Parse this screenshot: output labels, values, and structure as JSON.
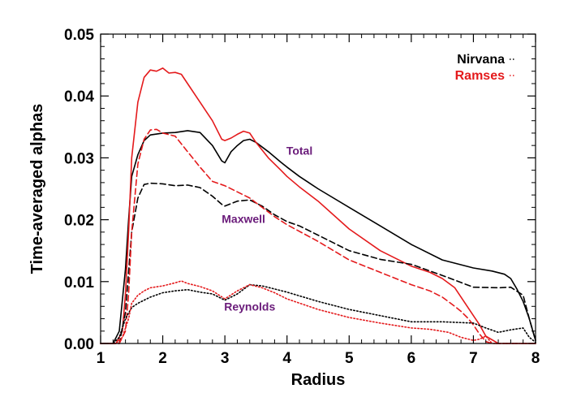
{
  "chart_data": {
    "type": "line",
    "title": "",
    "xlabel": "Radius",
    "ylabel": "Time-averaged alphas",
    "xlim": [
      1,
      8
    ],
    "ylim": [
      0,
      0.05
    ],
    "x_ticks": [
      "1",
      "2",
      "3",
      "4",
      "5",
      "6",
      "7",
      "8"
    ],
    "y_ticks": [
      "0.00",
      "0.01",
      "0.02",
      "0.03",
      "0.04",
      "0.05"
    ],
    "grid": false,
    "legend": {
      "placement": "top-right",
      "entries": [
        {
          "label": "Nirvana",
          "color": "#000000"
        },
        {
          "label": "Ramses",
          "color": "#e41a1c"
        }
      ]
    },
    "annotations": [
      {
        "text": "Total",
        "x": 4.2,
        "y": 0.0305,
        "color": "#6a1b7a"
      },
      {
        "text": "Maxwell",
        "x": 3.3,
        "y": 0.0195,
        "color": "#6a1b7a"
      },
      {
        "text": "Reynolds",
        "x": 3.4,
        "y": 0.0053,
        "color": "#6a1b7a"
      }
    ],
    "series": [
      {
        "name": "Nirvana Total",
        "code": "Nirvana",
        "component": "Total",
        "color": "#000000",
        "dash": "solid",
        "x": [
          1.0,
          1.2,
          1.3,
          1.4,
          1.45,
          1.5,
          1.6,
          1.7,
          1.8,
          2.0,
          2.2,
          2.4,
          2.6,
          2.8,
          2.95,
          3.0,
          3.1,
          3.2,
          3.3,
          3.4,
          3.5,
          3.7,
          3.9,
          4.0,
          4.2,
          4.5,
          5.0,
          5.5,
          6.0,
          6.5,
          7.0,
          7.3,
          7.5,
          7.6,
          7.7,
          7.8,
          7.9,
          8.0
        ],
        "y": [
          0,
          0,
          0.002,
          0.012,
          0.02,
          0.027,
          0.0305,
          0.0328,
          0.0337,
          0.034,
          0.0341,
          0.0344,
          0.0341,
          0.032,
          0.0295,
          0.0292,
          0.031,
          0.032,
          0.0328,
          0.033,
          0.0325,
          0.031,
          0.0293,
          0.0285,
          0.027,
          0.025,
          0.022,
          0.019,
          0.016,
          0.0135,
          0.0122,
          0.0117,
          0.0112,
          0.0105,
          0.0088,
          0.0068,
          0.004,
          0.0005
        ]
      },
      {
        "name": "Ramses Total",
        "code": "Ramses",
        "component": "Total",
        "color": "#e41a1c",
        "dash": "solid",
        "x": [
          1.0,
          1.25,
          1.35,
          1.4,
          1.45,
          1.5,
          1.6,
          1.7,
          1.8,
          1.9,
          2.0,
          2.1,
          2.2,
          2.3,
          2.4,
          2.6,
          2.8,
          2.95,
          3.0,
          3.1,
          3.2,
          3.3,
          3.4,
          3.5,
          3.7,
          3.9,
          4.0,
          4.2,
          4.5,
          5.0,
          5.5,
          6.0,
          6.3,
          6.5,
          6.7,
          6.9,
          7.0,
          7.1,
          7.2,
          7.4,
          8.0
        ],
        "y": [
          0,
          0,
          0.002,
          0.008,
          0.018,
          0.03,
          0.039,
          0.043,
          0.0442,
          0.044,
          0.0445,
          0.0437,
          0.0438,
          0.0435,
          0.042,
          0.039,
          0.036,
          0.033,
          0.0328,
          0.0332,
          0.0338,
          0.0343,
          0.034,
          0.0325,
          0.03,
          0.028,
          0.027,
          0.0253,
          0.023,
          0.0185,
          0.015,
          0.0125,
          0.0115,
          0.0105,
          0.009,
          0.006,
          0.0045,
          0.003,
          0.0012,
          0,
          0
        ]
      },
      {
        "name": "Nirvana Maxwell",
        "code": "Nirvana",
        "component": "Maxwell",
        "color": "#000000",
        "dash": "dashed",
        "x": [
          1.0,
          1.3,
          1.4,
          1.5,
          1.6,
          1.7,
          1.8,
          2.0,
          2.2,
          2.4,
          2.6,
          2.8,
          2.95,
          3.0,
          3.2,
          3.4,
          3.6,
          3.8,
          4.0,
          4.2,
          4.5,
          5.0,
          5.5,
          6.0,
          6.5,
          7.0,
          7.4,
          7.6,
          7.8,
          7.9,
          8.0
        ],
        "y": [
          0,
          0,
          0.005,
          0.018,
          0.0235,
          0.0257,
          0.0259,
          0.0258,
          0.0255,
          0.0256,
          0.0252,
          0.0238,
          0.0225,
          0.0222,
          0.023,
          0.0232,
          0.0222,
          0.0208,
          0.0197,
          0.019,
          0.0175,
          0.015,
          0.0136,
          0.0128,
          0.011,
          0.0091,
          0.009,
          0.0091,
          0.0078,
          0.004,
          0.0005
        ]
      },
      {
        "name": "Ramses Maxwell",
        "code": "Ramses",
        "component": "Maxwell",
        "color": "#e41a1c",
        "dash": "dashed",
        "x": [
          1.0,
          1.3,
          1.4,
          1.45,
          1.5,
          1.6,
          1.7,
          1.8,
          1.9,
          2.0,
          2.2,
          2.4,
          2.6,
          2.8,
          3.0,
          3.2,
          3.4,
          3.6,
          3.8,
          4.0,
          4.5,
          5.0,
          5.5,
          6.0,
          6.3,
          6.5,
          6.7,
          6.8,
          6.9,
          7.0,
          7.1,
          7.2,
          7.3,
          8.0
        ],
        "y": [
          0,
          0,
          0.002,
          0.008,
          0.018,
          0.029,
          0.033,
          0.0345,
          0.0346,
          0.034,
          0.0335,
          0.031,
          0.0285,
          0.0262,
          0.0255,
          0.0245,
          0.0235,
          0.022,
          0.0205,
          0.0192,
          0.0165,
          0.0135,
          0.0115,
          0.0095,
          0.0085,
          0.0075,
          0.006,
          0.0052,
          0.0042,
          0.003,
          0.0015,
          0.0003,
          0,
          0
        ]
      },
      {
        "name": "Nirvana Reynolds",
        "code": "Nirvana",
        "component": "Reynolds",
        "color": "#000000",
        "dash": "dotted",
        "x": [
          1.0,
          1.2,
          1.3,
          1.4,
          1.5,
          1.6,
          1.8,
          2.0,
          2.2,
          2.4,
          2.6,
          2.8,
          3.0,
          3.2,
          3.4,
          3.6,
          3.8,
          4.0,
          4.5,
          5.0,
          5.5,
          6.0,
          6.5,
          7.0,
          7.2,
          7.4,
          7.6,
          7.8,
          7.9,
          8.0
        ],
        "y": [
          0,
          0,
          0.001,
          0.004,
          0.0058,
          0.0065,
          0.0075,
          0.0082,
          0.0085,
          0.0087,
          0.0083,
          0.008,
          0.007,
          0.008,
          0.0095,
          0.0093,
          0.0088,
          0.0083,
          0.0068,
          0.0055,
          0.0045,
          0.0035,
          0.0035,
          0.0033,
          0.0025,
          0.0018,
          0.0022,
          0.0025,
          0.001,
          0.0002
        ]
      },
      {
        "name": "Ramses Reynolds",
        "code": "Ramses",
        "component": "Reynolds",
        "color": "#e41a1c",
        "dash": "dotted",
        "x": [
          1.0,
          1.25,
          1.35,
          1.45,
          1.5,
          1.6,
          1.7,
          1.8,
          2.0,
          2.2,
          2.3,
          2.4,
          2.6,
          2.8,
          3.0,
          3.2,
          3.4,
          3.6,
          3.8,
          4.0,
          4.5,
          5.0,
          5.5,
          6.0,
          6.3,
          6.6,
          6.8,
          7.0,
          7.1,
          7.2,
          7.3,
          8.0
        ],
        "y": [
          0,
          0,
          0.001,
          0.004,
          0.0065,
          0.0078,
          0.0085,
          0.009,
          0.0093,
          0.0098,
          0.0101,
          0.0097,
          0.0092,
          0.0085,
          0.0072,
          0.0085,
          0.0095,
          0.009,
          0.0082,
          0.0072,
          0.0055,
          0.0042,
          0.0033,
          0.0025,
          0.0023,
          0.0018,
          0.001,
          0.0005,
          0.0007,
          0.0012,
          0,
          0
        ]
      }
    ]
  }
}
